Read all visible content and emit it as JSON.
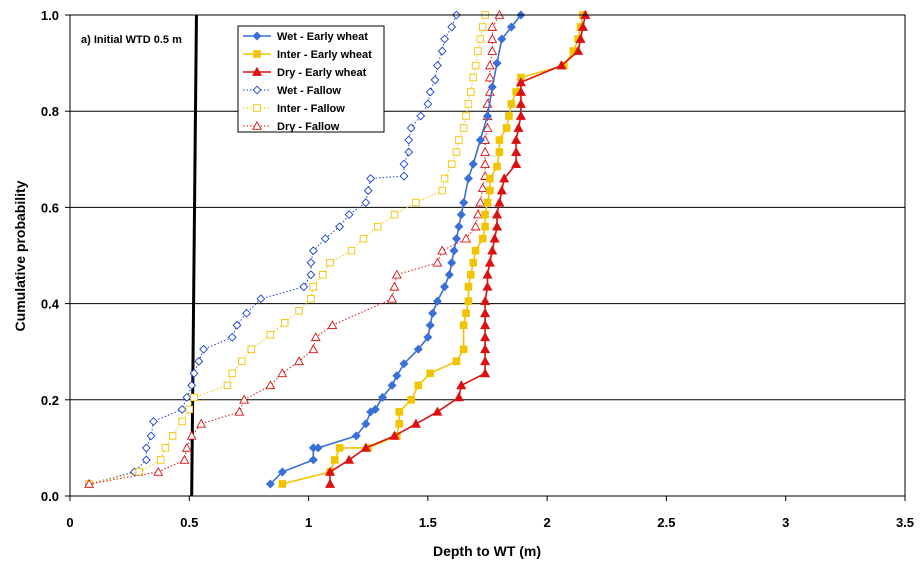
{
  "chart_data": {
    "type": "line",
    "xlabel": "Depth to WT (m)",
    "ylabel": "Cumulative probability",
    "xlim": [
      0,
      3.5
    ],
    "ylim": [
      0,
      1
    ],
    "xticks": [
      "0",
      "0.5",
      "1",
      "1.5",
      "2",
      "2.5",
      "3",
      "3.5"
    ],
    "yticks": [
      "0.0",
      "0.2",
      "0.4",
      "0.6",
      "0.8",
      "1.0"
    ],
    "grid": "horizontal",
    "legend_position": "top-left",
    "annotation": "a) Initial WTD 0.5 m",
    "reference_line": {
      "x": [
        0.51,
        0.53
      ],
      "y": [
        0,
        1
      ]
    },
    "series": [
      {
        "name": "Wet - Early wheat",
        "color": "#3a6fd8",
        "marker": "diamond",
        "filled": true,
        "dash": "solid",
        "points": [
          [
            0.84,
            0.025
          ],
          [
            0.89,
            0.05
          ],
          [
            1.02,
            0.075
          ],
          [
            1.02,
            0.1
          ],
          [
            1.04,
            0.1
          ],
          [
            1.2,
            0.125
          ],
          [
            1.24,
            0.15
          ],
          [
            1.26,
            0.175
          ],
          [
            1.28,
            0.18
          ],
          [
            1.31,
            0.205
          ],
          [
            1.35,
            0.23
          ],
          [
            1.37,
            0.25
          ],
          [
            1.4,
            0.275
          ],
          [
            1.46,
            0.305
          ],
          [
            1.5,
            0.33
          ],
          [
            1.51,
            0.355
          ],
          [
            1.52,
            0.38
          ],
          [
            1.54,
            0.405
          ],
          [
            1.57,
            0.435
          ],
          [
            1.59,
            0.46
          ],
          [
            1.6,
            0.485
          ],
          [
            1.61,
            0.51
          ],
          [
            1.62,
            0.535
          ],
          [
            1.63,
            0.56
          ],
          [
            1.64,
            0.585
          ],
          [
            1.65,
            0.61
          ],
          [
            1.67,
            0.66
          ],
          [
            1.69,
            0.69
          ],
          [
            1.72,
            0.74
          ],
          [
            1.75,
            0.79
          ],
          [
            1.77,
            0.85
          ],
          [
            1.79,
            0.9
          ],
          [
            1.81,
            0.95
          ],
          [
            1.85,
            0.975
          ],
          [
            1.89,
            1.0
          ]
        ]
      },
      {
        "name": "Inter - Early wheat",
        "color": "#f2c400",
        "marker": "square",
        "filled": true,
        "dash": "solid",
        "points": [
          [
            0.89,
            0.025
          ],
          [
            1.09,
            0.05
          ],
          [
            1.11,
            0.075
          ],
          [
            1.13,
            0.1
          ],
          [
            1.25,
            0.1
          ],
          [
            1.37,
            0.125
          ],
          [
            1.38,
            0.15
          ],
          [
            1.38,
            0.175
          ],
          [
            1.43,
            0.2
          ],
          [
            1.46,
            0.23
          ],
          [
            1.51,
            0.255
          ],
          [
            1.62,
            0.28
          ],
          [
            1.65,
            0.305
          ],
          [
            1.65,
            0.355
          ],
          [
            1.66,
            0.38
          ],
          [
            1.67,
            0.405
          ],
          [
            1.67,
            0.435
          ],
          [
            1.68,
            0.46
          ],
          [
            1.69,
            0.485
          ],
          [
            1.7,
            0.51
          ],
          [
            1.73,
            0.535
          ],
          [
            1.74,
            0.56
          ],
          [
            1.74,
            0.585
          ],
          [
            1.75,
            0.61
          ],
          [
            1.76,
            0.635
          ],
          [
            1.76,
            0.66
          ],
          [
            1.79,
            0.685
          ],
          [
            1.8,
            0.715
          ],
          [
            1.8,
            0.74
          ],
          [
            1.83,
            0.765
          ],
          [
            1.84,
            0.79
          ],
          [
            1.85,
            0.815
          ],
          [
            1.87,
            0.84
          ],
          [
            1.89,
            0.87
          ],
          [
            2.07,
            0.895
          ],
          [
            2.11,
            0.925
          ],
          [
            2.13,
            0.95
          ],
          [
            2.14,
            0.975
          ],
          [
            2.15,
            1.0
          ]
        ]
      },
      {
        "name": "Dry - Early wheat",
        "color": "#dc1010",
        "marker": "triangle",
        "filled": true,
        "dash": "solid",
        "points": [
          [
            1.09,
            0.025
          ],
          [
            1.09,
            0.05
          ],
          [
            1.17,
            0.075
          ],
          [
            1.24,
            0.1
          ],
          [
            1.36,
            0.125
          ],
          [
            1.45,
            0.15
          ],
          [
            1.54,
            0.175
          ],
          [
            1.63,
            0.205
          ],
          [
            1.64,
            0.23
          ],
          [
            1.74,
            0.255
          ],
          [
            1.74,
            0.28
          ],
          [
            1.74,
            0.305
          ],
          [
            1.74,
            0.33
          ],
          [
            1.74,
            0.355
          ],
          [
            1.74,
            0.38
          ],
          [
            1.74,
            0.405
          ],
          [
            1.75,
            0.435
          ],
          [
            1.75,
            0.46
          ],
          [
            1.76,
            0.485
          ],
          [
            1.77,
            0.51
          ],
          [
            1.78,
            0.535
          ],
          [
            1.79,
            0.56
          ],
          [
            1.79,
            0.585
          ],
          [
            1.8,
            0.61
          ],
          [
            1.81,
            0.635
          ],
          [
            1.82,
            0.66
          ],
          [
            1.87,
            0.69
          ],
          [
            1.87,
            0.715
          ],
          [
            1.87,
            0.74
          ],
          [
            1.88,
            0.765
          ],
          [
            1.89,
            0.79
          ],
          [
            1.89,
            0.815
          ],
          [
            1.89,
            0.84
          ],
          [
            1.89,
            0.86
          ],
          [
            2.06,
            0.895
          ],
          [
            2.13,
            0.925
          ],
          [
            2.14,
            0.95
          ],
          [
            2.15,
            0.975
          ],
          [
            2.16,
            1.0
          ]
        ]
      },
      {
        "name": "Wet - Fallow",
        "color": "#1a3fd6",
        "marker": "diamond",
        "filled": false,
        "dash": "dotted",
        "points": [
          [
            0.08,
            0.025
          ],
          [
            0.27,
            0.05
          ],
          [
            0.32,
            0.075
          ],
          [
            0.32,
            0.1
          ],
          [
            0.34,
            0.125
          ],
          [
            0.35,
            0.155
          ],
          [
            0.47,
            0.18
          ],
          [
            0.49,
            0.205
          ],
          [
            0.51,
            0.23
          ],
          [
            0.52,
            0.255
          ],
          [
            0.54,
            0.28
          ],
          [
            0.56,
            0.305
          ],
          [
            0.68,
            0.33
          ],
          [
            0.7,
            0.355
          ],
          [
            0.74,
            0.38
          ],
          [
            0.8,
            0.41
          ],
          [
            0.98,
            0.435
          ],
          [
            1.01,
            0.46
          ],
          [
            1.01,
            0.485
          ],
          [
            1.02,
            0.51
          ],
          [
            1.07,
            0.535
          ],
          [
            1.13,
            0.56
          ],
          [
            1.17,
            0.585
          ],
          [
            1.24,
            0.61
          ],
          [
            1.25,
            0.635
          ],
          [
            1.26,
            0.66
          ],
          [
            1.4,
            0.665
          ],
          [
            1.4,
            0.69
          ],
          [
            1.42,
            0.715
          ],
          [
            1.42,
            0.74
          ],
          [
            1.43,
            0.765
          ],
          [
            1.47,
            0.79
          ],
          [
            1.5,
            0.815
          ],
          [
            1.51,
            0.84
          ],
          [
            1.53,
            0.865
          ],
          [
            1.54,
            0.895
          ],
          [
            1.56,
            0.925
          ],
          [
            1.57,
            0.95
          ],
          [
            1.6,
            0.975
          ],
          [
            1.62,
            1.0
          ]
        ]
      },
      {
        "name": "Inter - Fallow",
        "color": "#f2c400",
        "marker": "square",
        "filled": false,
        "dash": "dotted",
        "points": [
          [
            0.08,
            0.025
          ],
          [
            0.29,
            0.05
          ],
          [
            0.38,
            0.075
          ],
          [
            0.4,
            0.1
          ],
          [
            0.43,
            0.125
          ],
          [
            0.47,
            0.155
          ],
          [
            0.5,
            0.18
          ],
          [
            0.52,
            0.205
          ],
          [
            0.66,
            0.23
          ],
          [
            0.68,
            0.255
          ],
          [
            0.72,
            0.28
          ],
          [
            0.76,
            0.305
          ],
          [
            0.84,
            0.335
          ],
          [
            0.9,
            0.36
          ],
          [
            0.96,
            0.385
          ],
          [
            1.01,
            0.41
          ],
          [
            1.02,
            0.435
          ],
          [
            1.06,
            0.46
          ],
          [
            1.09,
            0.485
          ],
          [
            1.18,
            0.51
          ],
          [
            1.23,
            0.535
          ],
          [
            1.29,
            0.56
          ],
          [
            1.36,
            0.585
          ],
          [
            1.45,
            0.61
          ],
          [
            1.56,
            0.635
          ],
          [
            1.57,
            0.66
          ],
          [
            1.6,
            0.69
          ],
          [
            1.62,
            0.715
          ],
          [
            1.63,
            0.74
          ],
          [
            1.65,
            0.765
          ],
          [
            1.66,
            0.79
          ],
          [
            1.67,
            0.815
          ],
          [
            1.68,
            0.84
          ],
          [
            1.69,
            0.87
          ],
          [
            1.7,
            0.895
          ],
          [
            1.71,
            0.925
          ],
          [
            1.72,
            0.95
          ],
          [
            1.73,
            0.975
          ],
          [
            1.74,
            1.0
          ]
        ]
      },
      {
        "name": "Dry - Fallow",
        "color": "#dc1010",
        "marker": "triangle",
        "filled": false,
        "dash": "dotted",
        "points": [
          [
            0.08,
            0.025
          ],
          [
            0.37,
            0.05
          ],
          [
            0.48,
            0.075
          ],
          [
            0.49,
            0.1
          ],
          [
            0.51,
            0.125
          ],
          [
            0.55,
            0.15
          ],
          [
            0.71,
            0.175
          ],
          [
            0.73,
            0.2
          ],
          [
            0.84,
            0.23
          ],
          [
            0.89,
            0.255
          ],
          [
            0.96,
            0.28
          ],
          [
            1.02,
            0.305
          ],
          [
            1.03,
            0.33
          ],
          [
            1.1,
            0.355
          ],
          [
            1.35,
            0.41
          ],
          [
            1.36,
            0.435
          ],
          [
            1.37,
            0.46
          ],
          [
            1.54,
            0.485
          ],
          [
            1.56,
            0.51
          ],
          [
            1.66,
            0.535
          ],
          [
            1.7,
            0.56
          ],
          [
            1.71,
            0.585
          ],
          [
            1.72,
            0.61
          ],
          [
            1.73,
            0.64
          ],
          [
            1.74,
            0.665
          ],
          [
            1.74,
            0.69
          ],
          [
            1.74,
            0.715
          ],
          [
            1.74,
            0.74
          ],
          [
            1.75,
            0.765
          ],
          [
            1.75,
            0.79
          ],
          [
            1.75,
            0.815
          ],
          [
            1.76,
            0.84
          ],
          [
            1.76,
            0.87
          ],
          [
            1.76,
            0.895
          ],
          [
            1.77,
            0.925
          ],
          [
            1.77,
            0.95
          ],
          [
            1.77,
            0.975
          ],
          [
            1.8,
            1.0
          ]
        ]
      }
    ]
  }
}
